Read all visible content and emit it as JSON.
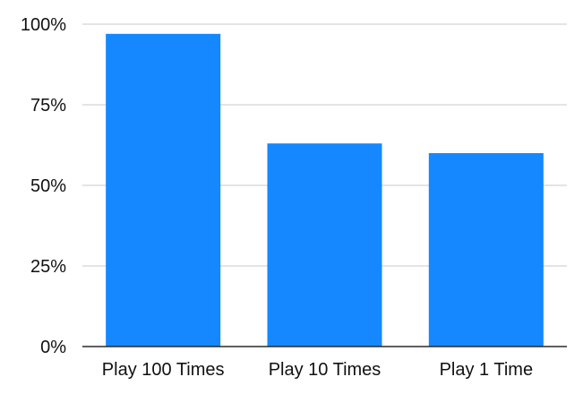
{
  "chart_data": {
    "type": "bar",
    "title": "",
    "xlabel": "",
    "ylabel": "",
    "categories": [
      "Play 100 Times",
      "Play 10 Times",
      "Play 1 Time"
    ],
    "values": [
      97,
      63,
      60
    ],
    "ylim": [
      0,
      100
    ],
    "yticks": [
      0,
      25,
      50,
      75,
      100
    ],
    "ytick_labels": [
      "0%",
      "25%",
      "50%",
      "75%",
      "100%"
    ],
    "grid": true,
    "legend": "none",
    "bar_color": "#1688FF"
  }
}
